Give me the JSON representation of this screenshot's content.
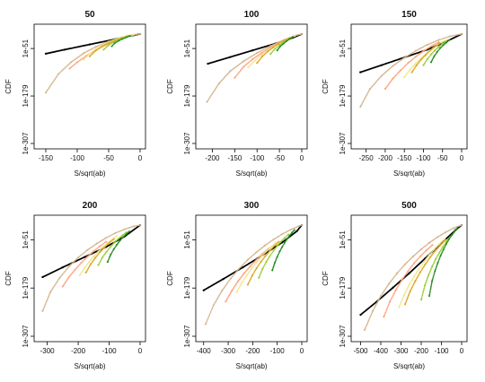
{
  "chart_data": [
    {
      "type": "scatter",
      "title": "50",
      "xlabel": "S/sqrt(ab)",
      "ylabel": "CDF",
      "xlim": [
        -160,
        0
      ],
      "xticks": [
        -150,
        -100,
        -50,
        0
      ],
      "yticks": [
        "1e-51",
        "1e-179",
        "1e-307"
      ],
      "series": [
        {
          "color": "#000000",
          "x": [
            -150,
            -120,
            -80,
            -40,
            -10,
            0
          ],
          "y": [
            -65,
            -54,
            -40,
            -26,
            -15,
            -12
          ]
        },
        {
          "color": "#d2b48c",
          "x": [
            -150,
            -130,
            -110,
            -90,
            -70,
            -50,
            -30,
            -10,
            0
          ],
          "y": [
            -170,
            -120,
            -88,
            -64,
            -46,
            -32,
            -21,
            -14,
            -12
          ]
        },
        {
          "color": "#ffa07a",
          "x": [
            -112,
            -100,
            -85,
            -70,
            -55,
            -40,
            -25,
            -10
          ],
          "y": [
            -105,
            -88,
            -70,
            -55,
            -42,
            -31,
            -22,
            -14
          ]
        },
        {
          "color": "#f0e68c",
          "x": [
            -90,
            -80,
            -70,
            -60,
            -50,
            -40,
            -30,
            -20,
            -10
          ],
          "y": [
            -82,
            -64,
            -52,
            -42,
            -34,
            -27,
            -21,
            -16,
            -13
          ]
        },
        {
          "color": "#daa520",
          "x": [
            -80,
            -70,
            -60,
            -50,
            -40,
            -30,
            -20
          ],
          "y": [
            -72,
            -56,
            -45,
            -36,
            -29,
            -23,
            -18
          ]
        },
        {
          "color": "#9acd32",
          "x": [
            -58,
            -50,
            -42,
            -34,
            -26,
            -18
          ],
          "y": [
            -54,
            -42,
            -34,
            -27,
            -22,
            -17
          ]
        },
        {
          "color": "#228b22",
          "x": [
            -45,
            -40,
            -34,
            -28,
            -22,
            -16
          ],
          "y": [
            -45,
            -36,
            -30,
            -25,
            -21,
            -17
          ]
        }
      ]
    },
    {
      "type": "scatter",
      "title": "100",
      "xlabel": "S/sqrt(ab)",
      "ylabel": "CDF",
      "xlim": [
        -225,
        0
      ],
      "xticks": [
        -200,
        -150,
        -100,
        -50,
        0
      ],
      "yticks": [
        "1e-51",
        "1e-179",
        "1e-307"
      ],
      "series": [
        {
          "color": "#000000",
          "x": [
            -210,
            -160,
            -110,
            -60,
            -20,
            0
          ],
          "y": [
            -92,
            -74,
            -56,
            -38,
            -22,
            -12
          ]
        },
        {
          "color": "#d2b48c",
          "x": [
            -212,
            -185,
            -160,
            -130,
            -100,
            -70,
            -40,
            -15,
            0
          ],
          "y": [
            -195,
            -145,
            -112,
            -85,
            -63,
            -44,
            -28,
            -16,
            -12
          ]
        },
        {
          "color": "#ffa07a",
          "x": [
            -150,
            -130,
            -110,
            -90,
            -70,
            -50,
            -30
          ],
          "y": [
            -130,
            -100,
            -80,
            -63,
            -48,
            -35,
            -24
          ]
        },
        {
          "color": "#f0e68c",
          "x": [
            -120,
            -105,
            -90,
            -75,
            -60,
            -45,
            -30,
            -15
          ],
          "y": [
            -102,
            -84,
            -68,
            -55,
            -44,
            -34,
            -25,
            -17
          ]
        },
        {
          "color": "#daa520",
          "x": [
            -100,
            -88,
            -76,
            -64,
            -52,
            -40,
            -28
          ],
          "y": [
            -90,
            -72,
            -59,
            -48,
            -38,
            -30,
            -23
          ]
        },
        {
          "color": "#9acd32",
          "x": [
            -70,
            -60,
            -50,
            -40,
            -30,
            -20
          ],
          "y": [
            -66,
            -52,
            -42,
            -34,
            -27,
            -20
          ]
        },
        {
          "color": "#228b22",
          "x": [
            -55,
            -48,
            -41,
            -34,
            -27,
            -20
          ],
          "y": [
            -56,
            -45,
            -38,
            -31,
            -25,
            -20
          ]
        }
      ]
    },
    {
      "type": "scatter",
      "title": "150",
      "xlabel": "S/sqrt(ab)",
      "ylabel": "CDF",
      "xlim": [
        -275,
        0
      ],
      "xticks": [
        -250,
        -200,
        -150,
        -100,
        -50,
        0
      ],
      "yticks": [
        "1e-51",
        "1e-179",
        "1e-307"
      ],
      "series": [
        {
          "color": "#000000",
          "x": [
            -265,
            -210,
            -150,
            -90,
            -40,
            0
          ],
          "y": [
            -115,
            -96,
            -75,
            -54,
            -32,
            -12
          ]
        },
        {
          "color": "#d2b48c",
          "x": [
            -265,
            -240,
            -210,
            -180,
            -150,
            -120,
            -90,
            -60,
            -30,
            0
          ],
          "y": [
            -208,
            -160,
            -125,
            -98,
            -76,
            -57,
            -41,
            -28,
            -18,
            -12
          ]
        },
        {
          "color": "#ffa07a",
          "x": [
            -200,
            -180,
            -160,
            -140,
            -120,
            -100,
            -80,
            -60
          ],
          "y": [
            -160,
            -132,
            -110,
            -90,
            -73,
            -58,
            -45,
            -34
          ]
        },
        {
          "color": "#f0e68c",
          "x": [
            -150,
            -135,
            -120,
            -105,
            -90,
            -75,
            -60,
            -45
          ],
          "y": [
            -128,
            -108,
            -91,
            -76,
            -62,
            -50,
            -39,
            -30
          ]
        },
        {
          "color": "#daa520",
          "x": [
            -130,
            -118,
            -106,
            -94,
            -82,
            -70,
            -58
          ],
          "y": [
            -115,
            -96,
            -81,
            -68,
            -56,
            -46,
            -37
          ]
        },
        {
          "color": "#9acd32",
          "x": [
            -100,
            -90,
            -80,
            -70,
            -60,
            -50,
            -40
          ],
          "y": [
            -96,
            -80,
            -67,
            -56,
            -47,
            -38,
            -31
          ]
        },
        {
          "color": "#228b22",
          "x": [
            -80,
            -72,
            -64,
            -56,
            -48,
            -40,
            -32
          ],
          "y": [
            -88,
            -72,
            -60,
            -50,
            -42,
            -35,
            -28
          ]
        }
      ]
    },
    {
      "type": "scatter",
      "title": "200",
      "xlabel": "S/sqrt(ab)",
      "ylabel": "CDF",
      "xlim": [
        -325,
        0
      ],
      "xticks": [
        -300,
        -200,
        -100,
        0
      ],
      "yticks": [
        "1e-51",
        "1e-179",
        "1e-307"
      ],
      "series": [
        {
          "color": "#000000",
          "x": [
            -315,
            -250,
            -180,
            -110,
            -50,
            0
          ],
          "y": [
            -150,
            -124,
            -97,
            -70,
            -42,
            -12
          ]
        },
        {
          "color": "#d2b48c",
          "x": [
            -315,
            -290,
            -260,
            -230,
            -200,
            -170,
            -140,
            -110,
            -80,
            -50,
            -20,
            0
          ],
          "y": [
            -240,
            -190,
            -152,
            -122,
            -98,
            -78,
            -61,
            -46,
            -33,
            -23,
            -15,
            -12
          ]
        },
        {
          "color": "#ffa07a",
          "x": [
            -250,
            -230,
            -210,
            -190,
            -170,
            -150,
            -130,
            -110
          ],
          "y": [
            -175,
            -150,
            -130,
            -112,
            -96,
            -81,
            -68,
            -56
          ]
        },
        {
          "color": "#f0e68c",
          "x": [
            -195,
            -180,
            -165,
            -150,
            -135,
            -120,
            -105,
            -90,
            -75
          ],
          "y": [
            -145,
            -126,
            -110,
            -95,
            -82,
            -70,
            -59,
            -50,
            -41
          ]
        },
        {
          "color": "#daa520",
          "x": [
            -175,
            -160,
            -145,
            -130,
            -115,
            -100,
            -85
          ],
          "y": [
            -138,
            -116,
            -99,
            -84,
            -71,
            -59,
            -49
          ]
        },
        {
          "color": "#9acd32",
          "x": [
            -135,
            -122,
            -109,
            -96,
            -83,
            -70,
            -57,
            -44
          ],
          "y": [
            -118,
            -98,
            -83,
            -70,
            -58,
            -48,
            -39,
            -31
          ]
        },
        {
          "color": "#228b22",
          "x": [
            -105,
            -95,
            -85,
            -75,
            -65,
            -55,
            -45,
            -35
          ],
          "y": [
            -110,
            -90,
            -76,
            -64,
            -53,
            -44,
            -36,
            -29
          ]
        }
      ]
    },
    {
      "type": "scatter",
      "title": "300",
      "xlabel": "S/sqrt(ab)",
      "ylabel": "CDF",
      "xlim": [
        -410,
        0
      ],
      "xticks": [
        -400,
        -300,
        -200,
        -100,
        0
      ],
      "yticks": [
        "1e-51",
        "1e-179",
        "1e-307"
      ],
      "series": [
        {
          "color": "#000000",
          "x": [
            -400,
            -320,
            -240,
            -160,
            -80,
            -20,
            0
          ],
          "y": [
            -185,
            -155,
            -124,
            -92,
            -58,
            -28,
            -12
          ]
        },
        {
          "color": "#d2b48c",
          "x": [
            -392,
            -360,
            -325,
            -290,
            -255,
            -220,
            -185,
            -150,
            -115,
            -80,
            -45,
            -10,
            0
          ],
          "y": [
            -275,
            -225,
            -186,
            -154,
            -127,
            -104,
            -84,
            -66,
            -50,
            -36,
            -24,
            -14,
            -12
          ]
        },
        {
          "color": "#ffa07a",
          "x": [
            -310,
            -285,
            -260,
            -235,
            -210,
            -185,
            -160,
            -135
          ],
          "y": [
            -215,
            -186,
            -161,
            -140,
            -121,
            -104,
            -88,
            -74
          ]
        },
        {
          "color": "#f0e68c",
          "x": [
            -265,
            -245,
            -225,
            -205,
            -185,
            -165,
            -145,
            -125,
            -105
          ],
          "y": [
            -190,
            -166,
            -146,
            -128,
            -111,
            -96,
            -82,
            -70,
            -58
          ]
        },
        {
          "color": "#daa520",
          "x": [
            -220,
            -202,
            -184,
            -166,
            -148,
            -130,
            -112,
            -94
          ],
          "y": [
            -170,
            -146,
            -126,
            -109,
            -94,
            -80,
            -67,
            -56
          ]
        },
        {
          "color": "#9acd32",
          "x": [
            -175,
            -160,
            -145,
            -130,
            -115,
            -100,
            -85,
            -70,
            -55
          ],
          "y": [
            -152,
            -128,
            -110,
            -94,
            -80,
            -67,
            -56,
            -46,
            -37
          ]
        },
        {
          "color": "#228b22",
          "x": [
            -120,
            -110,
            -100,
            -90,
            -80,
            -70,
            -60,
            -50,
            -40,
            -30
          ],
          "y": [
            -132,
            -112,
            -96,
            -82,
            -70,
            -59,
            -49,
            -40,
            -32,
            -25
          ]
        }
      ]
    },
    {
      "type": "scatter",
      "title": "500",
      "xlabel": "S/sqrt(ab)",
      "ylabel": "CDF",
      "xlim": [
        -520,
        0
      ],
      "xticks": [
        -500,
        -400,
        -300,
        -200,
        -100,
        0
      ],
      "yticks": [
        "1e-51",
        "1e-179",
        "1e-307"
      ],
      "series": [
        {
          "color": "#000000",
          "x": [
            -500,
            -420,
            -340,
            -260,
            -180,
            -100,
            -30,
            0
          ],
          "y": [
            -250,
            -215,
            -178,
            -140,
            -100,
            -60,
            -25,
            -12
          ]
        },
        {
          "color": "#d2b48c",
          "x": [
            -480,
            -440,
            -400,
            -360,
            -320,
            -280,
            -240,
            -200,
            -160,
            -120,
            -80,
            -40,
            0
          ],
          "y": [
            -290,
            -240,
            -200,
            -168,
            -140,
            -116,
            -95,
            -76,
            -59,
            -44,
            -31,
            -20,
            -12
          ]
        },
        {
          "color": "#ffa07a",
          "x": [
            -385,
            -355,
            -325,
            -295,
            -265,
            -235,
            -205,
            -175,
            -145
          ],
          "y": [
            -255,
            -215,
            -184,
            -157,
            -134,
            -113,
            -95,
            -79,
            -65
          ]
        },
        {
          "color": "#f0e68c",
          "x": [
            -310,
            -285,
            -260,
            -235,
            -210,
            -185,
            -160,
            -135,
            -110,
            -85
          ],
          "y": [
            -230,
            -198,
            -171,
            -148,
            -127,
            -108,
            -91,
            -76,
            -62,
            -49
          ]
        },
        {
          "color": "#daa520",
          "x": [
            -280,
            -255,
            -230,
            -205,
            -180,
            -155,
            -130,
            -105,
            -80
          ],
          "y": [
            -222,
            -188,
            -161,
            -137,
            -116,
            -97,
            -80,
            -65,
            -51
          ]
        },
        {
          "color": "#9acd32",
          "x": [
            -200,
            -182,
            -164,
            -146,
            -128,
            -110,
            -92,
            -74,
            -56,
            -38
          ],
          "y": [
            -210,
            -172,
            -145,
            -122,
            -102,
            -85,
            -69,
            -55,
            -43,
            -32
          ]
        },
        {
          "color": "#228b22",
          "x": [
            -160,
            -146,
            -132,
            -118,
            -104,
            -90,
            -76,
            -62,
            -48,
            -34,
            -20
          ],
          "y": [
            -200,
            -160,
            -134,
            -112,
            -93,
            -77,
            -62,
            -49,
            -38,
            -28,
            -19
          ]
        }
      ]
    }
  ]
}
